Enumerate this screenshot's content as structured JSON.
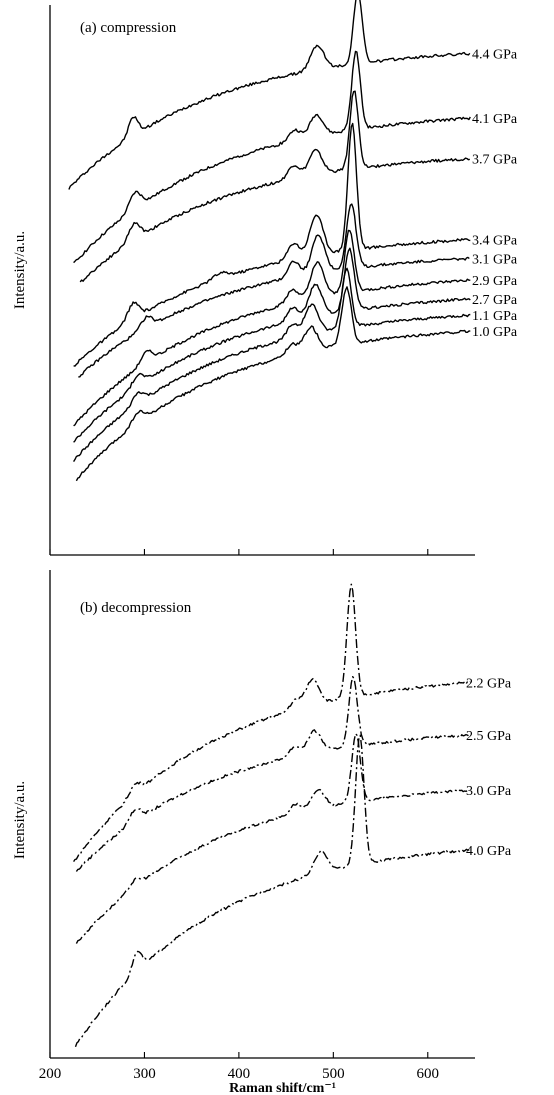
{
  "chart_data": [
    {
      "type": "line",
      "panel": "a",
      "title": "(a) compression",
      "ylabel": "Intensity/a.u.",
      "xlabel": "",
      "xlim": [
        200,
        650
      ],
      "xticks": [
        200,
        300,
        400,
        500,
        600
      ],
      "ylim": [
        0,
        10.2
      ],
      "y_ticks_labeled": false,
      "grid": false,
      "line_style": "solid",
      "series": [
        {
          "name": "4.4 GPa",
          "x_start": 220,
          "baseline": 6.8,
          "tail": 9.3,
          "peaks": [
            [
              288,
              0.35,
              5
            ],
            [
              483,
              0.45,
              7
            ],
            [
              526,
              1.35,
              4.5
            ]
          ]
        },
        {
          "name": "4.1 GPa",
          "x_start": 225,
          "baseline": 5.4,
          "tail": 8.1,
          "peaks": [
            [
              290,
              0.3,
              6
            ],
            [
              459,
              0.2,
              6
            ],
            [
              482,
              0.4,
              7
            ],
            [
              524,
              1.45,
              4.5
            ]
          ]
        },
        {
          "name": "3.7 GPa",
          "x_start": 232,
          "baseline": 5.05,
          "tail": 7.35,
          "peaks": [
            [
              289,
              0.3,
              6
            ],
            [
              458,
              0.25,
              6
            ],
            [
              481,
              0.45,
              7
            ],
            [
              522,
              1.45,
              4.5
            ]
          ]
        },
        {
          "name": "3.4 GPa",
          "x_start": 225,
          "baseline": 3.5,
          "tail": 5.85,
          "peaks": [
            [
              288,
              0.3,
              6
            ],
            [
              380,
              0.1,
              8
            ],
            [
              458,
              0.3,
              6
            ],
            [
              482,
              0.75,
              7
            ],
            [
              520,
              2.35,
              4.5
            ]
          ]
        },
        {
          "name": "3.1 GPa",
          "x_start": 230,
          "baseline": 3.3,
          "tail": 5.5,
          "peaks": [
            [
              302,
              0.2,
              6
            ],
            [
              458,
              0.3,
              6
            ],
            [
              484,
              0.7,
              7
            ],
            [
              519,
              1.2,
              5
            ]
          ]
        },
        {
          "name": "2.9 GPa",
          "x_start": 225,
          "baseline": 2.4,
          "tail": 5.1,
          "peaks": [
            [
              302,
              0.2,
              6
            ],
            [
              457,
              0.25,
              6
            ],
            [
              483,
              0.65,
              7
            ],
            [
              517,
              1.15,
              5
            ]
          ]
        },
        {
          "name": "2.7 GPa",
          "x_start": 225,
          "baseline": 2.1,
          "tail": 4.75,
          "peaks": [
            [
              293,
              0.2,
              6
            ],
            [
              457,
              0.25,
              6
            ],
            [
              481,
              0.6,
              7
            ],
            [
              517,
              1.15,
              5
            ]
          ]
        },
        {
          "name": "1.1 GPa",
          "x_start": 225,
          "baseline": 1.75,
          "tail": 4.45,
          "peaks": [
            [
              293,
              0.2,
              6
            ],
            [
              457,
              0.25,
              6
            ],
            [
              477,
              0.55,
              7
            ],
            [
              514,
              1.1,
              5
            ]
          ]
        },
        {
          "name": "1.0 GPa",
          "x_start": 228,
          "baseline": 1.4,
          "tail": 4.15,
          "peaks": [
            [
              293,
              0.2,
              6
            ],
            [
              456,
              0.2,
              6
            ],
            [
              476,
              0.45,
              7
            ],
            [
              514,
              1.05,
              5
            ]
          ]
        }
      ]
    },
    {
      "type": "line",
      "panel": "b",
      "title": "(b) decompression",
      "ylabel": "Intensity/a.u.",
      "xlabel": "Raman shift/cm⁻¹",
      "xlim": [
        200,
        650
      ],
      "xticks": [
        200,
        300,
        400,
        500,
        600
      ],
      "ylim": [
        0,
        10.2
      ],
      "y_ticks_labeled": false,
      "grid": false,
      "line_style": "dash-dot",
      "series": [
        {
          "name": "2.2 GPa",
          "x_start": 225,
          "baseline": 4.1,
          "tail": 7.85,
          "peaks": [
            [
              290,
              0.2,
              6
            ],
            [
              460,
              0.2,
              6
            ],
            [
              478,
              0.55,
              7
            ],
            [
              519,
              2.35,
              4.5
            ]
          ]
        },
        {
          "name": "2.5 GPa",
          "x_start": 228,
          "baseline": 3.9,
          "tail": 6.75,
          "peaks": [
            [
              290,
              0.25,
              6
            ],
            [
              459,
              0.2,
              6
            ],
            [
              480,
              0.45,
              7
            ],
            [
              521,
              1.45,
              4.5
            ]
          ]
        },
        {
          "name": "3.0 GPa",
          "x_start": 228,
          "baseline": 2.4,
          "tail": 5.6,
          "peaks": [
            [
              290,
              0.15,
              6
            ],
            [
              460,
              0.2,
              6
            ],
            [
              484,
              0.4,
              7
            ],
            [
              524,
              1.45,
              4.5
            ]
          ]
        },
        {
          "name": "4.0 GPa",
          "x_start": 227,
          "baseline": 0.25,
          "tail": 4.35,
          "peaks": [
            [
              292,
              0.4,
              5
            ],
            [
              487,
              0.45,
              7
            ],
            [
              528,
              2.7,
              4.5
            ]
          ]
        }
      ]
    }
  ]
}
